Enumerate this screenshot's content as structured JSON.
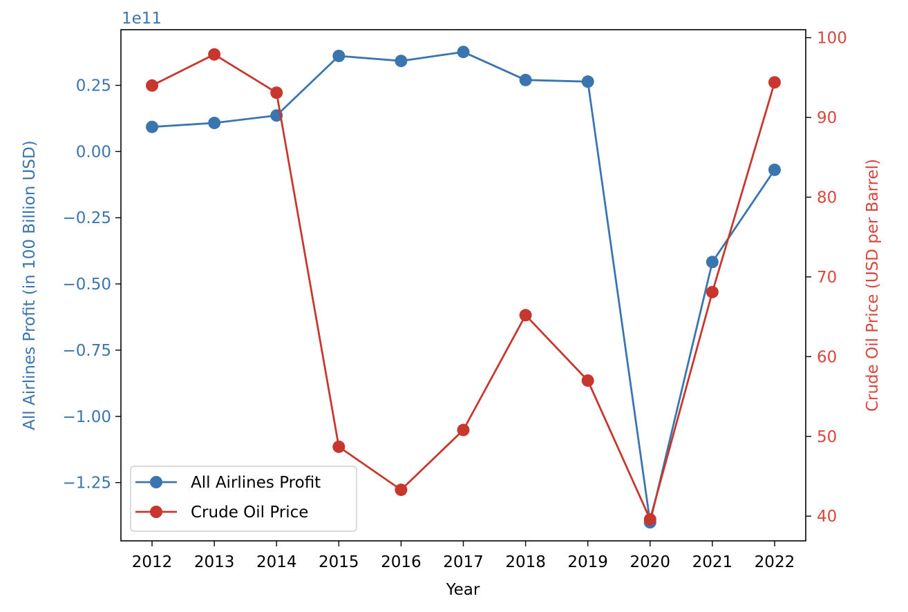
{
  "chart_data": {
    "type": "line",
    "title": "",
    "xlabel": "Year",
    "ylabel_left": "All Airlines Profit (in 100 Billion USD)",
    "ylabel_right": "Crude Oil Price (USD per Barrel)",
    "left_offset_text": "1e11",
    "x": [
      2012,
      2013,
      2014,
      2015,
      2016,
      2017,
      2018,
      2019,
      2020,
      2021,
      2022
    ],
    "x_ticks": [
      "2012",
      "2013",
      "2014",
      "2015",
      "2016",
      "2017",
      "2018",
      "2019",
      "2020",
      "2021",
      "2022"
    ],
    "left_axis": {
      "ylim": [
        -1.47,
        0.46
      ],
      "ticks": [
        0.25,
        0.0,
        -0.25,
        -0.5,
        -0.75,
        -1.0,
        -1.25
      ],
      "tick_labels": [
        "0.25",
        "0.00",
        "−0.25",
        "−0.50",
        "−0.75",
        "−1.00",
        "−1.25"
      ],
      "color": "#3b75af"
    },
    "right_axis": {
      "ylim": [
        36.9,
        101.0
      ],
      "ticks": [
        40,
        50,
        60,
        70,
        80,
        90,
        100
      ],
      "tick_labels": [
        "40",
        "50",
        "60",
        "70",
        "80",
        "90",
        "100"
      ],
      "color": "#d9473d"
    },
    "series": [
      {
        "name": "All Airlines Profit",
        "axis": "left",
        "color": "#3b75af",
        "values": [
          0.093,
          0.108,
          0.136,
          0.361,
          0.342,
          0.376,
          0.27,
          0.264,
          -1.4,
          -0.417,
          -0.069
        ]
      },
      {
        "name": "Crude Oil Price",
        "axis": "right",
        "color": "#c8372d",
        "values": [
          94.0,
          97.9,
          93.1,
          48.7,
          43.3,
          50.8,
          65.2,
          57.0,
          39.6,
          68.1,
          94.4
        ]
      }
    ],
    "legend": {
      "position": "lower-left"
    },
    "grid": false
  }
}
